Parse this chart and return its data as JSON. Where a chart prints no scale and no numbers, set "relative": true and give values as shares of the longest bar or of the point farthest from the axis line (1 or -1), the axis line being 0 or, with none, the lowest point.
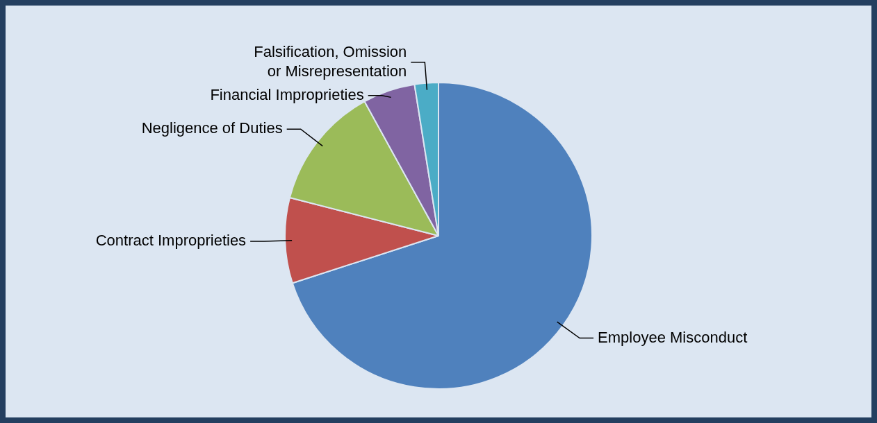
{
  "chart_data": {
    "type": "pie",
    "relative": true,
    "categories": [
      "Employee Misconduct",
      "Contract Improprieties",
      "Negligence of Duties",
      "Financial Improprieties",
      "Falsification, Omission or Misrepresentation"
    ],
    "values": [
      70,
      9,
      13,
      5.5,
      2.5
    ],
    "colors": [
      "#4f81bd",
      "#c0504d",
      "#9bbb59",
      "#8064a2",
      "#4bacc6"
    ],
    "legend": false
  }
}
